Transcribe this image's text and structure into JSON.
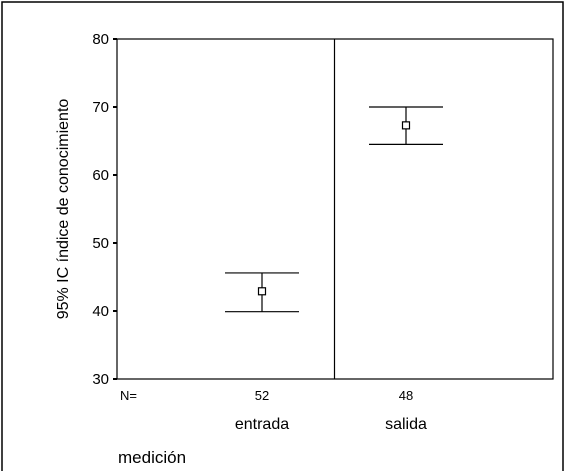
{
  "chart_data": {
    "type": "errorbar",
    "categories": [
      "entrada",
      "salida"
    ],
    "n_label": "N=",
    "n": [
      "52",
      "48"
    ],
    "means": [
      42.9,
      67.3
    ],
    "ci_lower": [
      39.9,
      64.5
    ],
    "ci_upper": [
      45.6,
      70.0
    ],
    "ylabel": "95% IC índice de conocimiento",
    "xlabel": "medición",
    "ylim": [
      30,
      80
    ],
    "yticks": [
      "30",
      "40",
      "50",
      "60",
      "70",
      "80"
    ],
    "grid": false,
    "colors": {
      "line": "#000000",
      "background": "#ffffff"
    }
  }
}
